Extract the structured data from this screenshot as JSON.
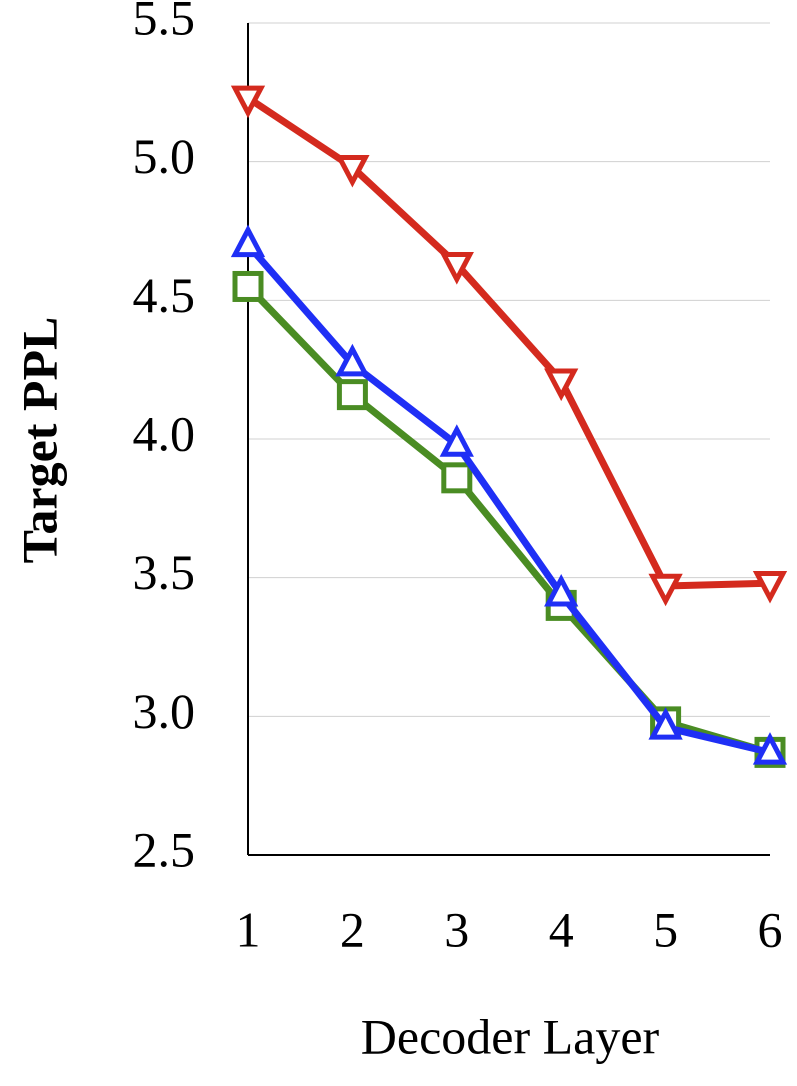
{
  "chart_data": {
    "type": "line",
    "x_label": "Decoder Layer",
    "y_label": "Target PPL",
    "x": [
      1,
      2,
      3,
      4,
      5,
      6
    ],
    "xlim": [
      1,
      6
    ],
    "xticks": [
      1,
      2,
      3,
      4,
      5,
      6
    ],
    "ylim": [
      2.5,
      5.5
    ],
    "yticks": [
      2.5,
      {
        "value": 3,
        "label": "3.0"
      },
      3.5,
      {
        "value": 4,
        "label": "4.0"
      },
      4.5,
      {
        "value": 5,
        "label": "5.0"
      },
      5.5
    ],
    "grid": true,
    "series": [
      {
        "color": "#d42a1e",
        "marker": "triangle-down",
        "values": [
          5.23,
          4.98,
          4.63,
          4.21,
          3.47,
          3.48
        ]
      },
      {
        "color": "#4a8c23",
        "marker": "square",
        "values": [
          4.55,
          4.16,
          3.86,
          3.4,
          2.98,
          2.87
        ]
      },
      {
        "color": "#1f2ff5",
        "marker": "triangle-up",
        "values": [
          4.7,
          4.27,
          3.98,
          3.44,
          2.96,
          2.87
        ]
      }
    ]
  }
}
